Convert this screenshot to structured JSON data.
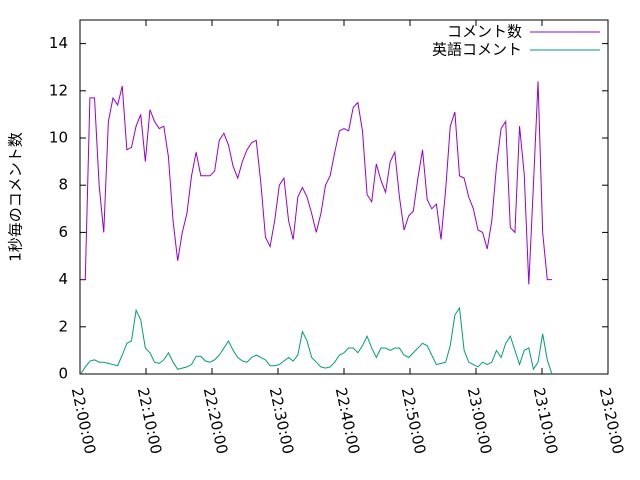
{
  "chart_data": {
    "type": "line",
    "ylabel": "1秒毎のコメント数",
    "xlim": [
      "22:00:00",
      "23:20:00"
    ],
    "xticks": [
      "22:00:00",
      "22:10:00",
      "22:20:00",
      "22:30:00",
      "22:40:00",
      "22:50:00",
      "23:00:00",
      "23:10:00",
      "23:20:00"
    ],
    "ylim": [
      0,
      15
    ],
    "yticks": [
      0,
      2,
      4,
      6,
      8,
      10,
      12,
      14
    ],
    "legend": "top-right",
    "x": [
      "22:00:06",
      "22:00:48",
      "22:01:30",
      "22:02:12",
      "22:02:54",
      "22:03:36",
      "22:04:18",
      "22:05:00",
      "22:05:42",
      "22:06:24",
      "22:07:06",
      "22:07:48",
      "22:08:30",
      "22:09:12",
      "22:09:54",
      "22:10:36",
      "22:11:18",
      "22:12:00",
      "22:12:42",
      "22:13:24",
      "22:14:06",
      "22:14:48",
      "22:15:30",
      "22:16:12",
      "22:16:54",
      "22:17:36",
      "22:18:18",
      "22:19:00",
      "22:19:42",
      "22:20:24",
      "22:21:06",
      "22:21:48",
      "22:22:30",
      "22:23:12",
      "22:23:54",
      "22:24:36",
      "22:25:18",
      "22:26:00",
      "22:26:42",
      "22:27:24",
      "22:28:06",
      "22:28:48",
      "22:29:30",
      "22:30:12",
      "22:30:54",
      "22:31:36",
      "22:32:18",
      "22:33:00",
      "22:33:42",
      "22:34:24",
      "22:35:06",
      "22:35:48",
      "22:36:30",
      "22:37:12",
      "22:37:54",
      "22:38:36",
      "22:39:18",
      "22:40:00",
      "22:40:42",
      "22:41:24",
      "22:42:06",
      "22:42:48",
      "22:43:30",
      "22:44:12",
      "22:44:54",
      "22:45:36",
      "22:46:18",
      "22:47:00",
      "22:47:42",
      "22:48:24",
      "22:49:06",
      "22:49:48",
      "22:50:30",
      "22:51:12",
      "22:51:54",
      "22:52:36",
      "22:53:18",
      "22:54:00",
      "22:54:42",
      "22:55:24",
      "22:56:06",
      "22:56:48",
      "22:57:30",
      "22:58:12",
      "22:58:54",
      "22:59:36",
      "23:00:18",
      "23:01:00",
      "23:01:42",
      "23:02:24",
      "23:03:06",
      "23:03:48",
      "23:04:30",
      "23:05:12",
      "23:05:54",
      "23:06:36",
      "23:07:18",
      "23:08:00",
      "23:08:42",
      "23:09:24",
      "23:10:06",
      "23:10:48",
      "23:11:30"
    ],
    "series": [
      {
        "name": "コメント数",
        "color": "#9400d3",
        "values": [
          4.0,
          4.0,
          11.7,
          11.7,
          8,
          6,
          10.7,
          11.7,
          11.4,
          12.2,
          9.5,
          9.6,
          10.5,
          11,
          9,
          11.2,
          10.7,
          10.4,
          10.5,
          9.2,
          6.5,
          4.8,
          6,
          6.8,
          8.4,
          9.4,
          8.4,
          8.4,
          8.4,
          8.6,
          9.9,
          10.2,
          9.7,
          8.8,
          8.3,
          9.0,
          9.5,
          9.8,
          9.9,
          8.1,
          5.8,
          5.4,
          6.5,
          8,
          8.3,
          6.5,
          5.7,
          7.5,
          7.9,
          7.5,
          6.8,
          6.0,
          6.8,
          8.0,
          8.4,
          9.4,
          10.3,
          10.4,
          10.3,
          11.3,
          11.5,
          10.3,
          7.6,
          7.3,
          8.9,
          8.2,
          7.7,
          9.0,
          9.4,
          7.5,
          6.1,
          6.7,
          6.9,
          8.3,
          9.5,
          7.4,
          7.0,
          7.2,
          5.7,
          7.8,
          10.5,
          11.1,
          8.4,
          8.3,
          7.5,
          7.0,
          6.1,
          6.0,
          5.3,
          6.5,
          8.8,
          10.4,
          10.7,
          6.2,
          6.0,
          10.5,
          8.5,
          3.8,
          8,
          12.4,
          6,
          4.0,
          4.0
        ]
      },
      {
        "name": "英語コメント",
        "color": "#009e73",
        "values": [
          0,
          0.3,
          0.55,
          0.6,
          0.5,
          0.5,
          0.45,
          0.4,
          0.35,
          0.8,
          1.3,
          1.4,
          2.7,
          2.3,
          1.1,
          0.9,
          0.5,
          0.45,
          0.6,
          0.9,
          0.5,
          0.2,
          0.25,
          0.3,
          0.4,
          0.75,
          0.75,
          0.55,
          0.5,
          0.6,
          0.8,
          1.1,
          1.4,
          1.0,
          0.7,
          0.55,
          0.5,
          0.7,
          0.8,
          0.7,
          0.6,
          0.35,
          0.35,
          0.4,
          0.55,
          0.7,
          0.55,
          0.8,
          1.8,
          1.4,
          0.7,
          0.5,
          0.3,
          0.25,
          0.3,
          0.5,
          0.8,
          0.9,
          1.1,
          1.1,
          0.9,
          1.2,
          1.6,
          1.1,
          0.7,
          1.1,
          1.1,
          1.0,
          1.1,
          1.1,
          0.8,
          0.7,
          0.9,
          1.1,
          1.3,
          1.2,
          0.8,
          0.4,
          0.45,
          0.5,
          1.2,
          2.5,
          2.8,
          1.0,
          0.5,
          0.4,
          0.3,
          0.5,
          0.4,
          0.5,
          1.0,
          0.7,
          1.3,
          1.6,
          1.0,
          0.4,
          1.0,
          1.1,
          0.2,
          0.5,
          1.7,
          0.6,
          0
        ]
      }
    ]
  }
}
